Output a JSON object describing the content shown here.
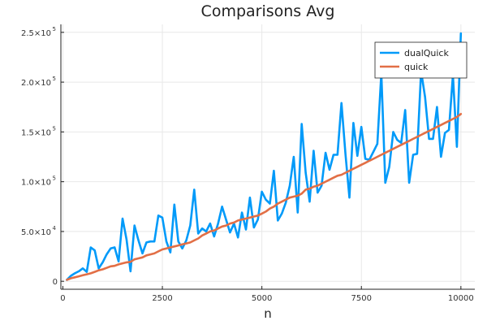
{
  "chart_data": {
    "type": "line",
    "title": "Comparisons Avg",
    "xlabel": "n",
    "ylabel": "",
    "xlim": [
      -50,
      10350
    ],
    "ylim": [
      -8000,
      258000
    ],
    "grid": true,
    "legend_position": "top-right",
    "x_ticks": [
      {
        "value": 0,
        "label": "0"
      },
      {
        "value": 2500,
        "label": "2500"
      },
      {
        "value": 5000,
        "label": "5000"
      },
      {
        "value": 7500,
        "label": "7500"
      },
      {
        "value": 10000,
        "label": "10000"
      }
    ],
    "y_ticks": [
      {
        "value": 0,
        "mantissa": "0",
        "exp": ""
      },
      {
        "value": 50000,
        "mantissa": "5.0×10",
        "exp": "4"
      },
      {
        "value": 100000,
        "mantissa": "1.0×10",
        "exp": "5"
      },
      {
        "value": 150000,
        "mantissa": "1.5×10",
        "exp": "5"
      },
      {
        "value": 200000,
        "mantissa": "2.0×10",
        "exp": "5"
      },
      {
        "value": 250000,
        "mantissa": "2.5×10",
        "exp": "5"
      }
    ],
    "x": [
      100,
      200,
      300,
      400,
      500,
      600,
      700,
      800,
      900,
      1000,
      1100,
      1200,
      1300,
      1400,
      1500,
      1600,
      1700,
      1800,
      1900,
      2000,
      2100,
      2200,
      2300,
      2400,
      2500,
      2600,
      2700,
      2800,
      2900,
      3000,
      3100,
      3200,
      3300,
      3400,
      3500,
      3600,
      3700,
      3800,
      3900,
      4000,
      4100,
      4200,
      4300,
      4400,
      4500,
      4600,
      4700,
      4800,
      4900,
      5000,
      5100,
      5200,
      5300,
      5400,
      5500,
      5600,
      5700,
      5800,
      5900,
      6000,
      6100,
      6200,
      6300,
      6400,
      6500,
      6600,
      6700,
      6800,
      6900,
      7000,
      7100,
      7200,
      7300,
      7400,
      7500,
      7600,
      7700,
      7800,
      7900,
      8000,
      8100,
      8200,
      8300,
      8400,
      8500,
      8600,
      8700,
      8800,
      8900,
      9000,
      9100,
      9200,
      9300,
      9400,
      9500,
      9600,
      9700,
      9800,
      9900,
      10000
    ],
    "series": [
      {
        "name": "dualQuick",
        "color": "#009af9",
        "values": [
          1500,
          5500,
          8000,
          10000,
          13000,
          9500,
          34000,
          31000,
          13000,
          19000,
          27000,
          33000,
          34000,
          20000,
          63000,
          42000,
          10000,
          56000,
          41000,
          28000,
          39000,
          40000,
          40000,
          66000,
          64000,
          40000,
          29000,
          77000,
          40000,
          33000,
          41000,
          56000,
          92000,
          48000,
          53000,
          50000,
          58000,
          45000,
          58000,
          75000,
          62000,
          49000,
          58000,
          44000,
          69000,
          52000,
          84000,
          54000,
          62000,
          90000,
          82000,
          78000,
          111000,
          61000,
          68000,
          79000,
          96000,
          125000,
          69000,
          158000,
          109000,
          80000,
          131000,
          89000,
          96000,
          129000,
          112000,
          127000,
          127000,
          179000,
          128000,
          84000,
          159000,
          126000,
          155000,
          123000,
          122000,
          130000,
          138000,
          209000,
          99000,
          115000,
          150000,
          142000,
          139000,
          172000,
          99000,
          127000,
          128000,
          211000,
          185000,
          143000,
          143000,
          175000,
          125000,
          149000,
          152000,
          207000,
          135000,
          249000
        ]
      },
      {
        "name": "quick",
        "color": "#e26f46",
        "values": [
          1500,
          3000,
          4000,
          5000,
          6000,
          7000,
          8000,
          9500,
          11000,
          12000,
          13500,
          15000,
          15500,
          17000,
          18000,
          19000,
          19500,
          22000,
          23000,
          24000,
          26000,
          27000,
          28000,
          30000,
          32000,
          33000,
          34000,
          35000,
          36000,
          37000,
          38000,
          39000,
          41000,
          43000,
          46000,
          48000,
          50000,
          51000,
          53000,
          55000,
          56000,
          58000,
          59000,
          61000,
          62000,
          63000,
          64000,
          65000,
          66000,
          68000,
          70000,
          73000,
          75000,
          78000,
          80000,
          82000,
          84000,
          85000,
          86000,
          88000,
          92000,
          93000,
          95000,
          96000,
          98000,
          100000,
          102000,
          104000,
          106000,
          107000,
          109000,
          111000,
          113000,
          115000,
          117000,
          119000,
          121000,
          123000,
          125000,
          127000,
          129000,
          131000,
          133000,
          135000,
          137000,
          139000,
          141000,
          143000,
          145000,
          147000,
          149000,
          151000,
          153000,
          155000,
          157000,
          159000,
          161000,
          163000,
          165000,
          168000
        ]
      }
    ]
  }
}
